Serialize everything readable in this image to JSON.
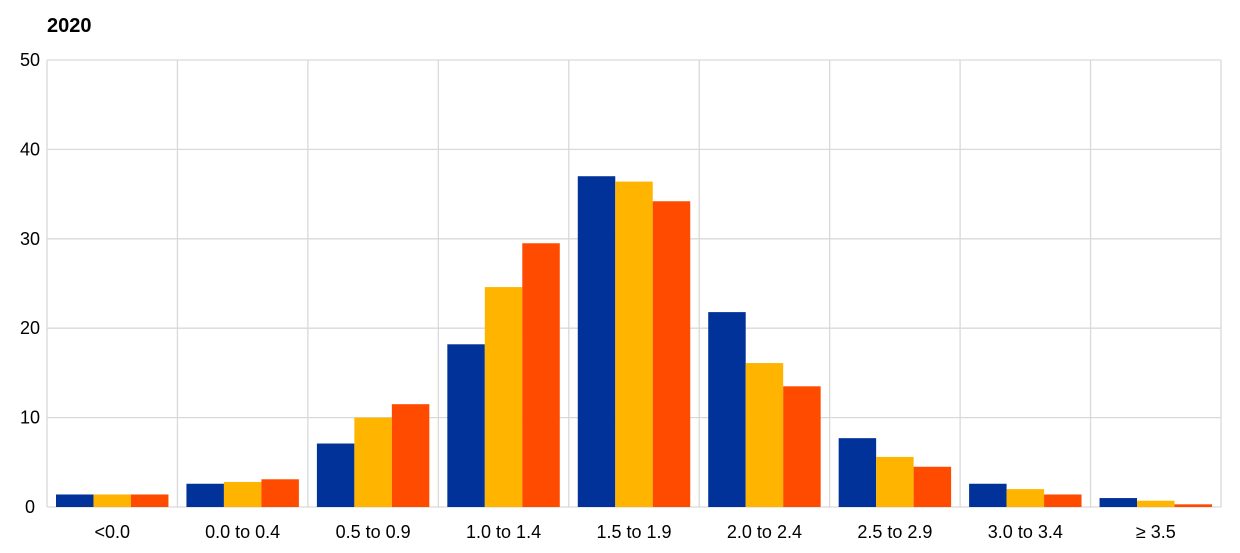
{
  "chart_data": {
    "type": "bar",
    "title": "2020",
    "xlabel": "",
    "ylabel": "",
    "ylim": [
      0,
      50
    ],
    "yticks": [
      0,
      10,
      20,
      30,
      40,
      50
    ],
    "grid": true,
    "categories": [
      "<0.0",
      "0.0 to 0.4",
      "0.5 to 0.9",
      "1.0 to 1.4",
      "1.5 to 1.9",
      "2.0 to 2.4",
      "2.5 to 2.9",
      "3.0 to 3.4",
      "≥ 3.5"
    ],
    "series": [
      {
        "color": "#003299",
        "values": [
          1.4,
          2.6,
          7.1,
          18.2,
          37.0,
          21.8,
          7.7,
          2.6,
          1.0
        ]
      },
      {
        "color": "#FFB400",
        "values": [
          1.4,
          2.8,
          10.0,
          24.6,
          36.4,
          16.1,
          5.6,
          2.0,
          0.7
        ]
      },
      {
        "color": "#FF4B00",
        "values": [
          1.4,
          3.1,
          11.5,
          29.5,
          34.2,
          13.5,
          4.5,
          1.4,
          0.3
        ]
      }
    ]
  }
}
